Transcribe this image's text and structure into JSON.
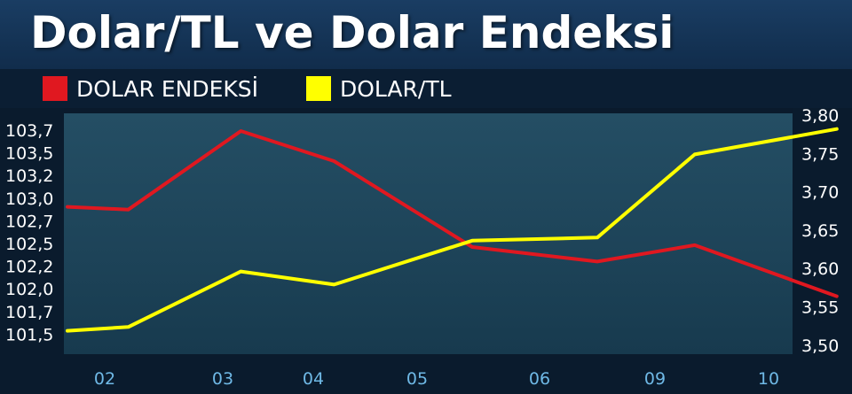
{
  "title": "Dolar/TL ve Dolar Endeksi",
  "legend": [
    {
      "label": "DOLAR ENDEKSİ",
      "color": "#e01820"
    },
    {
      "label": "DOLAR/TL",
      "color": "#ffff00"
    }
  ],
  "colors": {
    "accent_red": "#e01820",
    "accent_yellow": "#ffff00",
    "plot_bg": "#1f4659",
    "x_tick": "#6fb9e6"
  },
  "chart_data": {
    "type": "line",
    "categories": [
      "02",
      "03",
      "04",
      "05",
      "06",
      "09",
      "10"
    ],
    "left_axis_ticks": [
      "103,7",
      "103,5",
      "103,2",
      "103,0",
      "102,7",
      "102,5",
      "102,2",
      "102,0",
      "101,7",
      "101,5"
    ],
    "right_axis_ticks": [
      "3,80",
      "3,75",
      "3,70",
      "3,65",
      "3,60",
      "3,55",
      "3,50"
    ],
    "y_left_lim": [
      101.5,
      103.75
    ],
    "y_right_lim": [
      3.5,
      3.8
    ],
    "grid": false,
    "series": [
      {
        "name": "DOLAR ENDEKSİ",
        "axis": "left",
        "color": "#e01820",
        "points": [
          {
            "x": 1.55,
            "y": 102.92
          },
          {
            "x": 2.05,
            "y": 102.89
          },
          {
            "x": 3.05,
            "y": 103.75
          },
          {
            "x": 4.05,
            "y": 103.42
          },
          {
            "x": 5.3,
            "y": 102.48
          },
          {
            "x": 6.35,
            "y": 102.32
          },
          {
            "x": 7.2,
            "y": 102.5
          },
          {
            "x": 8.45,
            "y": 101.94
          }
        ]
      },
      {
        "name": "DOLAR/TL",
        "axis": "right",
        "color": "#ffff00",
        "points": [
          {
            "x": 1.55,
            "y": 3.52
          },
          {
            "x": 2.05,
            "y": 3.525
          },
          {
            "x": 3.05,
            "y": 3.597
          },
          {
            "x": 4.05,
            "y": 3.58
          },
          {
            "x": 5.3,
            "y": 3.637
          },
          {
            "x": 6.35,
            "y": 3.641
          },
          {
            "x": 7.2,
            "y": 3.749
          },
          {
            "x": 8.45,
            "y": 3.782
          }
        ]
      }
    ]
  }
}
